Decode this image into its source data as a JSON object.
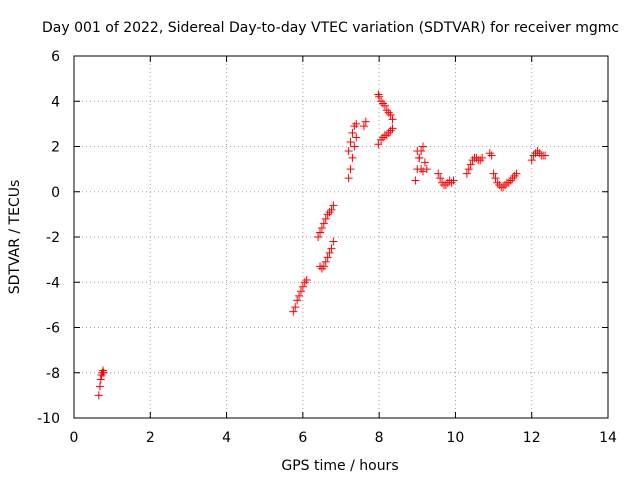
{
  "chart_data": {
    "type": "scatter",
    "title": "Day 001 of 2022, Sidereal Day-to-day VTEC variation (SDTVAR) for receiver mgmc",
    "xlabel": "GPS time / hours",
    "ylabel": "SDTVAR / TECUs",
    "xlim": [
      0,
      14
    ],
    "ylim": [
      -10,
      6
    ],
    "xticks": [
      0,
      2,
      4,
      6,
      8,
      10,
      12,
      14
    ],
    "yticks": [
      -10,
      -8,
      -6,
      -4,
      -2,
      0,
      2,
      4,
      6
    ],
    "grid": true,
    "marker": "plus",
    "color": "#ff0000",
    "series": [
      {
        "name": "SDTVAR",
        "x": [
          0.65,
          0.68,
          0.7,
          0.72,
          0.74,
          0.76,
          0.78,
          5.75,
          5.8,
          5.85,
          5.9,
          5.95,
          6.0,
          6.05,
          6.1,
          6.4,
          6.45,
          6.5,
          6.55,
          6.6,
          6.65,
          6.7,
          6.75,
          6.8,
          6.45,
          6.5,
          6.55,
          6.6,
          6.65,
          6.7,
          6.75,
          6.8,
          7.2,
          7.25,
          7.3,
          7.35,
          7.4,
          7.2,
          7.25,
          7.3,
          7.35,
          7.4,
          7.6,
          7.65,
          7.98,
          8.0,
          8.05,
          8.1,
          8.15,
          8.2,
          8.25,
          8.3,
          8.35,
          7.98,
          8.05,
          8.1,
          8.15,
          8.2,
          8.25,
          8.3,
          8.35,
          8.95,
          9.0,
          9.05,
          9.1,
          9.15,
          9.2,
          9.25,
          9.0,
          9.05,
          9.1,
          9.15,
          9.55,
          9.6,
          9.65,
          9.7,
          9.75,
          9.8,
          9.85,
          9.9,
          9.95,
          10.3,
          10.35,
          10.4,
          10.45,
          10.5,
          10.55,
          10.6,
          10.65,
          10.7,
          10.9,
          10.95,
          11.0,
          11.05,
          11.1,
          11.15,
          11.2,
          11.25,
          11.3,
          11.35,
          11.4,
          11.45,
          11.5,
          11.55,
          11.6,
          12.0,
          12.05,
          12.1,
          12.15,
          12.2,
          12.25,
          12.3,
          12.35
        ],
        "y": [
          -9.0,
          -8.6,
          -8.3,
          -8.1,
          -8.0,
          -7.9,
          -8.0,
          -5.3,
          -5.1,
          -4.8,
          -4.6,
          -4.4,
          -4.2,
          -4.0,
          -3.9,
          -2.0,
          -1.8,
          -1.6,
          -1.4,
          -1.2,
          -1.0,
          -0.9,
          -0.8,
          -0.6,
          -3.3,
          -3.4,
          -3.3,
          -3.1,
          -2.9,
          -2.7,
          -2.5,
          -2.2,
          0.6,
          1.0,
          1.5,
          2.0,
          2.4,
          1.8,
          2.2,
          2.6,
          2.9,
          3.0,
          2.9,
          3.1,
          4.3,
          4.2,
          4.0,
          3.9,
          3.8,
          3.6,
          3.5,
          3.4,
          3.2,
          2.1,
          2.3,
          2.4,
          2.5,
          2.5,
          2.6,
          2.7,
          2.8,
          0.5,
          1.0,
          1.5,
          1.8,
          2.0,
          1.3,
          1.0,
          1.8,
          1.5,
          1.0,
          0.9,
          0.8,
          0.6,
          0.4,
          0.3,
          0.3,
          0.4,
          0.5,
          0.4,
          0.5,
          0.8,
          1.0,
          1.2,
          1.4,
          1.5,
          1.5,
          1.4,
          1.4,
          1.5,
          1.7,
          1.6,
          0.8,
          0.6,
          0.4,
          0.3,
          0.2,
          0.2,
          0.3,
          0.4,
          0.4,
          0.5,
          0.6,
          0.7,
          0.8,
          1.4,
          1.6,
          1.7,
          1.8,
          1.7,
          1.6,
          1.6,
          1.6
        ]
      }
    ]
  }
}
